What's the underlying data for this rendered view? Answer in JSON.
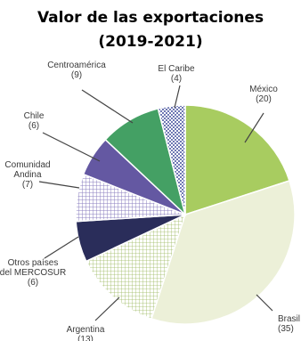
{
  "chart_data": {
    "type": "pie",
    "title": "Valor de las exportaciones",
    "subtitle": "(2019-2021)",
    "start_angle_deg": 0,
    "slices": [
      {
        "label_lines": [
          "México",
          "(20)"
        ],
        "value": 20,
        "color": "#a8cc60",
        "pattern": "solid"
      },
      {
        "label_lines": [
          "Brasil",
          "(35)"
        ],
        "value": 35,
        "color": "#ecf0d8",
        "pattern": "solid"
      },
      {
        "label_lines": [
          "Argentina",
          "(13)"
        ],
        "value": 13,
        "color": "#e2edc4",
        "pattern": "grid"
      },
      {
        "label_lines": [
          "Otros países",
          "del MERCOSUR",
          "(6)"
        ],
        "value": 6,
        "color": "#2a2d5a",
        "pattern": "solid"
      },
      {
        "label_lines": [
          "Comunidad",
          "Andina",
          "(7)"
        ],
        "value": 7,
        "color": "#9a90c6",
        "pattern": "grid"
      },
      {
        "label_lines": [
          "Chile",
          "(6)"
        ],
        "value": 6,
        "color": "#6458a2",
        "pattern": "solid"
      },
      {
        "label_lines": [
          "Centroamérica",
          "(9)"
        ],
        "value": 9,
        "color": "#44a064",
        "pattern": "solid"
      },
      {
        "label_lines": [
          "El Caribe",
          "(4)"
        ],
        "value": 4,
        "color": "#7c83b8",
        "pattern": "checker"
      }
    ],
    "legend": "none"
  }
}
